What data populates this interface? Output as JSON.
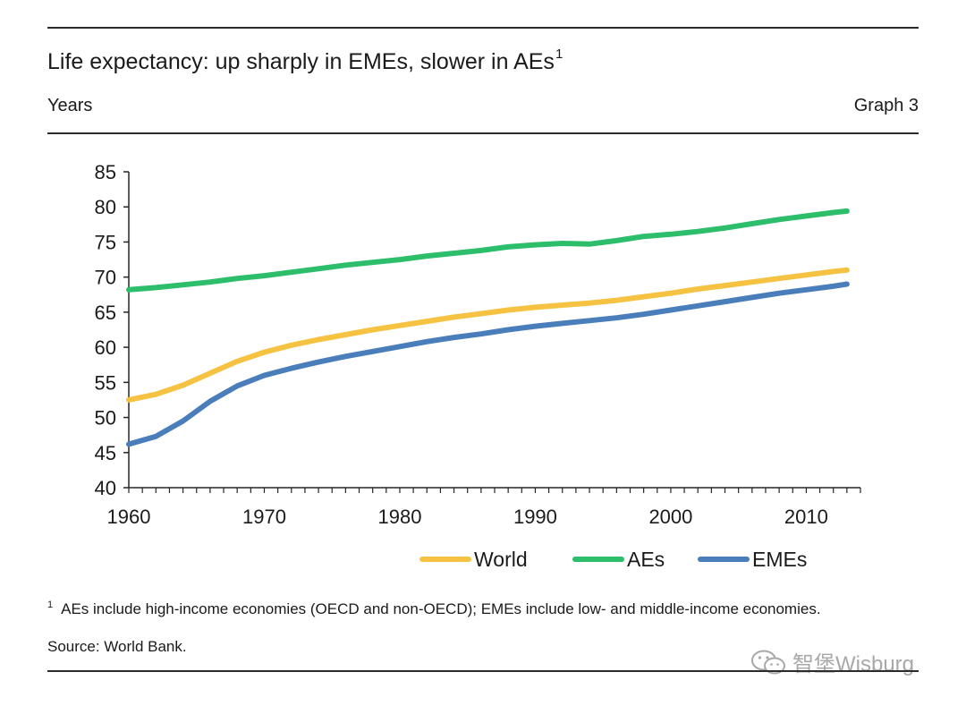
{
  "header": {
    "title": "Life expectancy: up sharply in EMEs, slower in AEs",
    "title_sup": "1",
    "unit": "Years",
    "graph_label": "Graph 3"
  },
  "chart_data": {
    "type": "line",
    "title": "Life expectancy: up sharply in EMEs, slower in AEs",
    "xlabel": "",
    "ylabel": "Years",
    "xlim": [
      1960,
      2014
    ],
    "ylim": [
      40,
      85
    ],
    "xticks": [
      1960,
      1970,
      1980,
      1990,
      2000,
      2010
    ],
    "yticks": [
      40,
      45,
      50,
      55,
      60,
      65,
      70,
      75,
      80,
      85
    ],
    "grid": false,
    "legend_position": "bottom-right",
    "x": [
      1960,
      1962,
      1964,
      1966,
      1968,
      1970,
      1972,
      1974,
      1976,
      1978,
      1980,
      1982,
      1984,
      1986,
      1988,
      1990,
      1992,
      1994,
      1996,
      1998,
      2000,
      2002,
      2004,
      2006,
      2008,
      2010,
      2012,
      2013
    ],
    "series": [
      {
        "name": "World",
        "color": "#F5C242",
        "values": [
          52.5,
          53.3,
          54.6,
          56.3,
          58.0,
          59.3,
          60.3,
          61.1,
          61.8,
          62.5,
          63.1,
          63.7,
          64.3,
          64.8,
          65.3,
          65.7,
          66.0,
          66.3,
          66.7,
          67.2,
          67.7,
          68.3,
          68.8,
          69.3,
          69.8,
          70.3,
          70.8,
          71.0
        ]
      },
      {
        "name": "AEs",
        "color": "#2DBE6C",
        "values": [
          68.2,
          68.5,
          68.9,
          69.3,
          69.8,
          70.2,
          70.7,
          71.2,
          71.7,
          72.1,
          72.5,
          73.0,
          73.4,
          73.8,
          74.3,
          74.6,
          74.8,
          74.7,
          75.2,
          75.8,
          76.1,
          76.5,
          77.0,
          77.6,
          78.2,
          78.7,
          79.2,
          79.4
        ]
      },
      {
        "name": "EMEs",
        "color": "#4A7EBB",
        "values": [
          46.2,
          47.3,
          49.5,
          52.3,
          54.5,
          56.0,
          57.0,
          57.9,
          58.7,
          59.4,
          60.1,
          60.8,
          61.4,
          61.9,
          62.5,
          63.0,
          63.4,
          63.8,
          64.2,
          64.7,
          65.3,
          65.9,
          66.5,
          67.1,
          67.7,
          68.2,
          68.7,
          69.0
        ]
      }
    ]
  },
  "footnote": {
    "marker": "1",
    "text": "AEs include high-income economies (OECD and non-OECD); EMEs include low- and middle-income economies."
  },
  "source": "Source: World Bank.",
  "watermark": {
    "text": "智堡Wisburg",
    "icon": "wechat-icon"
  }
}
